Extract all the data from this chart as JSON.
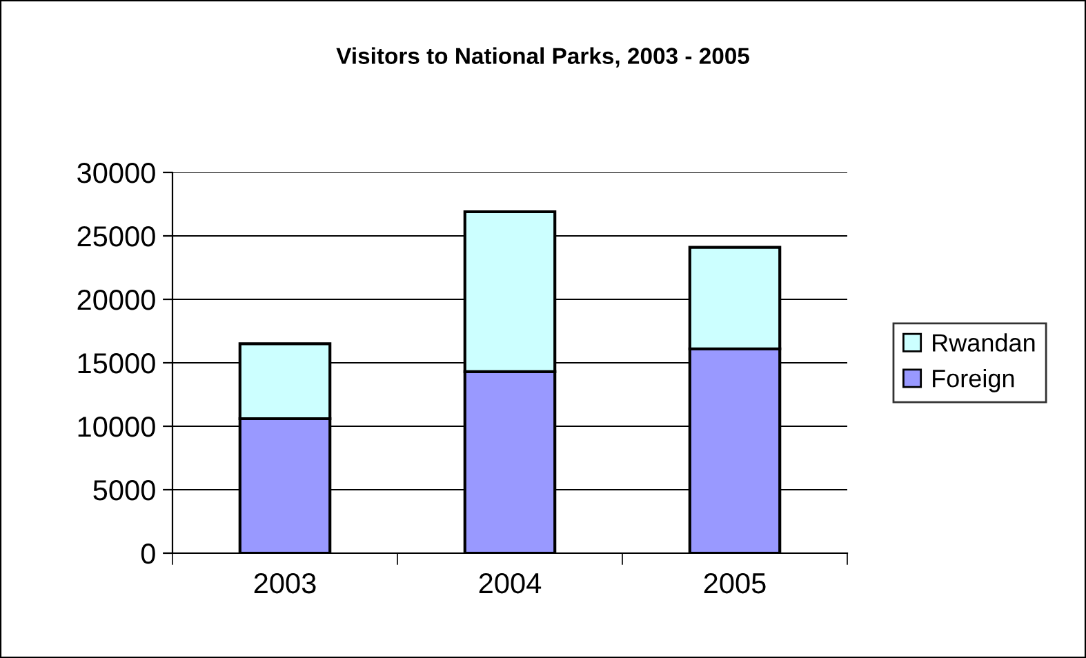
{
  "chart_data": {
    "type": "bar",
    "title": "Visitors to National Parks, 2003 - 2005",
    "categories": [
      "2003",
      "2004",
      "2005"
    ],
    "series": [
      {
        "name": "Foreign",
        "color": "#9999ff",
        "values": [
          10600,
          14300,
          16100
        ]
      },
      {
        "name": "Rwandan",
        "color": "#ccffff",
        "values": [
          5900,
          12600,
          8000
        ]
      }
    ],
    "stacked": true,
    "ylim": [
      0,
      30000
    ],
    "yticks": [
      0,
      5000,
      10000,
      15000,
      20000,
      25000,
      30000
    ],
    "grid": "y",
    "legend": "right"
  }
}
